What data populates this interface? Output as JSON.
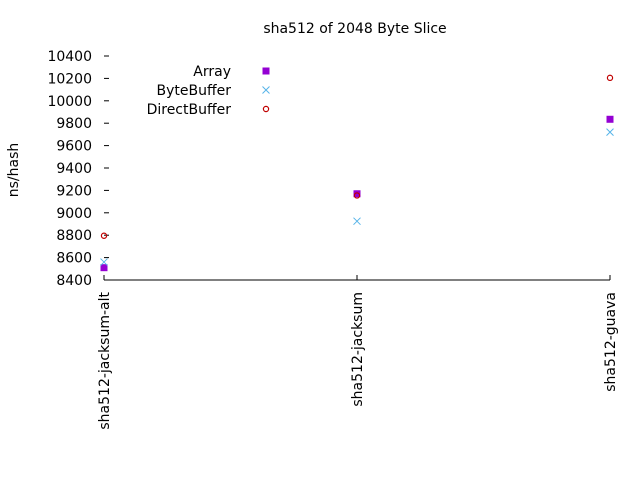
{
  "chart_data": {
    "type": "scatter",
    "title": "sha512 of 2048 Byte Slice",
    "xlabel": "",
    "ylabel": "ns/hash",
    "categories": [
      "sha512-jacksum-alt",
      "sha512-jacksum",
      "sha512-guava"
    ],
    "ylim": [
      8400,
      10400
    ],
    "yticks": [
      8400,
      8600,
      8800,
      9000,
      9200,
      9400,
      9600,
      9800,
      10000,
      10200,
      10400
    ],
    "grid": false,
    "legend_position": "top-left",
    "series": [
      {
        "name": "Array",
        "marker": "square",
        "color": "#9400d3",
        "values": [
          8510,
          9170,
          9835
        ]
      },
      {
        "name": "ByteBuffer",
        "marker": "x",
        "color": "#56b4e9",
        "values": [
          8560,
          8925,
          9720
        ]
      },
      {
        "name": "DirectBuffer",
        "marker": "circle",
        "color": "#c00000",
        "values": [
          8795,
          9155,
          10205
        ]
      }
    ]
  }
}
